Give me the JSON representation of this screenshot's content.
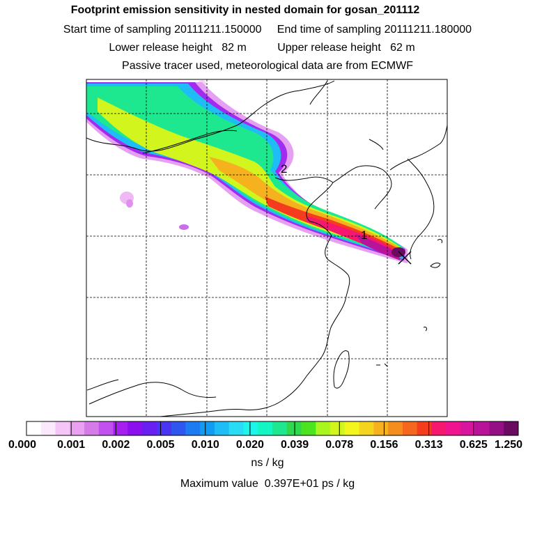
{
  "titles": {
    "line1": "Footprint emission sensitivity in nested domain for gosan_201112",
    "line2": "Start time of sampling 20111211.150000     End time of sampling 20111211.180000",
    "line3": "Lower release height   82 m          Upper release height   62 m",
    "line4": "Passive tracer used, meteorological data are from ECMWF"
  },
  "map": {
    "markers": [
      {
        "label": "1"
      },
      {
        "label": "2"
      }
    ],
    "release_site_icon": "x-cross-icon"
  },
  "colorbar": {
    "tick_labels": [
      "0.000",
      "0.001",
      "0.002",
      "0.005",
      "0.010",
      "0.020",
      "0.039",
      "0.078",
      "0.156",
      "0.313",
      "0.625",
      "1.250"
    ],
    "colors": [
      "#ffffff",
      "#fce8fc",
      "#f5c5f8",
      "#eca0f2",
      "#d47be8",
      "#c24ff0",
      "#a71ef0",
      "#8a10f0",
      "#6a1ff2",
      "#4a36f2",
      "#2f57f0",
      "#1d7cf2",
      "#0f9cf2",
      "#1fbdf5",
      "#28dcf5",
      "#1df5ea",
      "#14f5c4",
      "#1ee88f",
      "#30d84f",
      "#4ce41e",
      "#a9f51e",
      "#d2f51e",
      "#f5f51e",
      "#f5d41e",
      "#f5b21e",
      "#f58c1e",
      "#f5661e",
      "#f53c1e",
      "#f5186e",
      "#f01491",
      "#d7159f",
      "#b8139a",
      "#951085",
      "#6a0a60"
    ],
    "unit": "ns / kg"
  },
  "max_value": "Maximum value  0.397E+01 ps / kg"
}
